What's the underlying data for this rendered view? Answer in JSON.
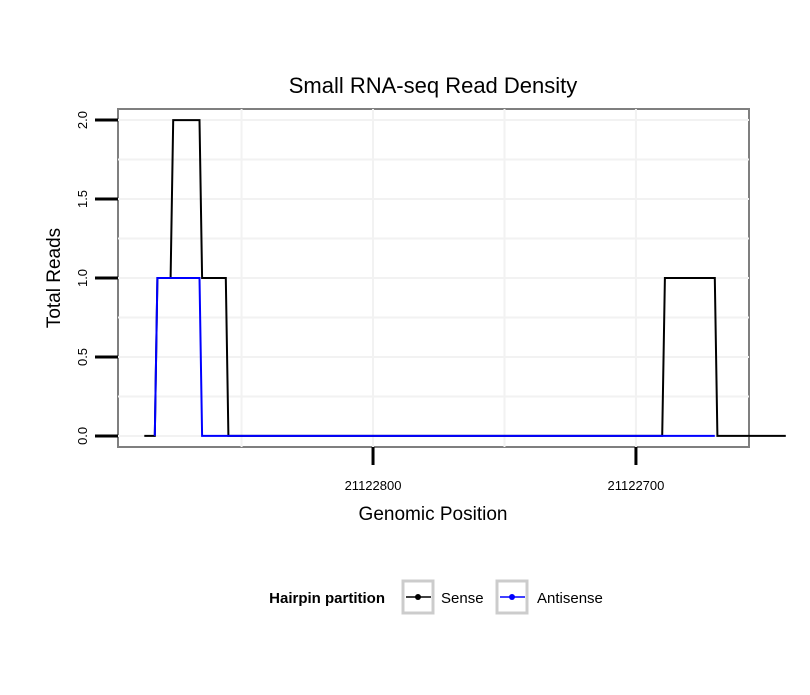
{
  "chart_data": {
    "type": "line",
    "title": "Small RNA-seq Read Density",
    "xlabel": "Genomic Position",
    "ylabel": "Total Reads",
    "x_reversed": true,
    "xlim": [
      21122897,
      21122657
    ],
    "ylim": [
      -0.07,
      2.07
    ],
    "x_ticks": [
      21122800,
      21122700
    ],
    "x_tick_labels": [
      "21122800",
      "21122700"
    ],
    "y_ticks": [
      0,
      0.5,
      1,
      1.5,
      2
    ],
    "y_tick_labels": [
      "0.0",
      "0.5",
      "1.0",
      "1.5",
      "2.0"
    ],
    "grid": true,
    "legend": {
      "title": "Hairpin partition",
      "position": "bottom",
      "entries": [
        {
          "name": "Sense",
          "color": "#000000"
        },
        {
          "name": "Antisense",
          "color": "#0000ff"
        }
      ]
    },
    "series": [
      {
        "name": "Sense",
        "color": "#000000",
        "x": [
          21122887,
          21122883,
          21122882,
          21122877,
          21122876,
          21122866,
          21122865,
          21122856,
          21122855,
          21122780,
          21122700,
          21122690,
          21122689,
          21122670,
          21122669,
          21122643
        ],
        "y": [
          0,
          0,
          1,
          1,
          2,
          2,
          1,
          1,
          0,
          0,
          0,
          0,
          1,
          1,
          0,
          0
        ]
      },
      {
        "name": "Antisense",
        "color": "#0000ff",
        "x": [
          21122883,
          21122882,
          21122866,
          21122865,
          21122856,
          21122780,
          21122700,
          21122690,
          21122670
        ],
        "y": [
          0,
          1,
          1,
          0,
          0,
          0,
          0,
          0,
          0
        ]
      }
    ]
  }
}
